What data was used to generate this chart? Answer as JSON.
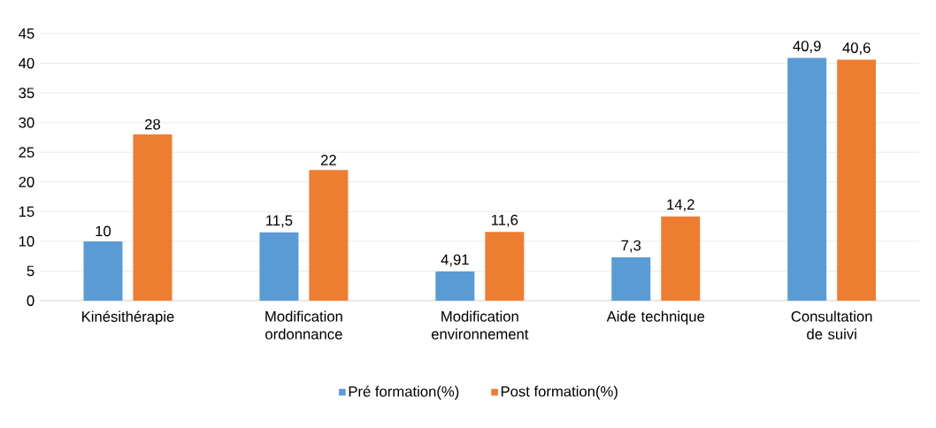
{
  "chart_data": {
    "type": "bar",
    "categories": [
      "Kinésithérapie",
      "Modification ordonnance",
      "Modification environnement",
      "Aide technique",
      "Consultation de suivi"
    ],
    "series": [
      {
        "name": "Pré formation(%)",
        "color": "#5b9bd5",
        "values": [
          10,
          11.5,
          4.91,
          7.3,
          40.9
        ],
        "value_labels": [
          "10",
          "11,5",
          "4,91",
          "7,3",
          "40,9"
        ]
      },
      {
        "name": "Post formation(%)",
        "color": "#ed7d31",
        "values": [
          28,
          22,
          11.6,
          14.2,
          40.6
        ],
        "value_labels": [
          "28",
          "22",
          "11,6",
          "14,2",
          "40,6"
        ]
      }
    ],
    "ylim": [
      0,
      45
    ],
    "yticks": [
      0,
      5,
      10,
      15,
      20,
      25,
      30,
      35,
      40,
      45
    ],
    "grid": "y",
    "legend": "bottom"
  }
}
